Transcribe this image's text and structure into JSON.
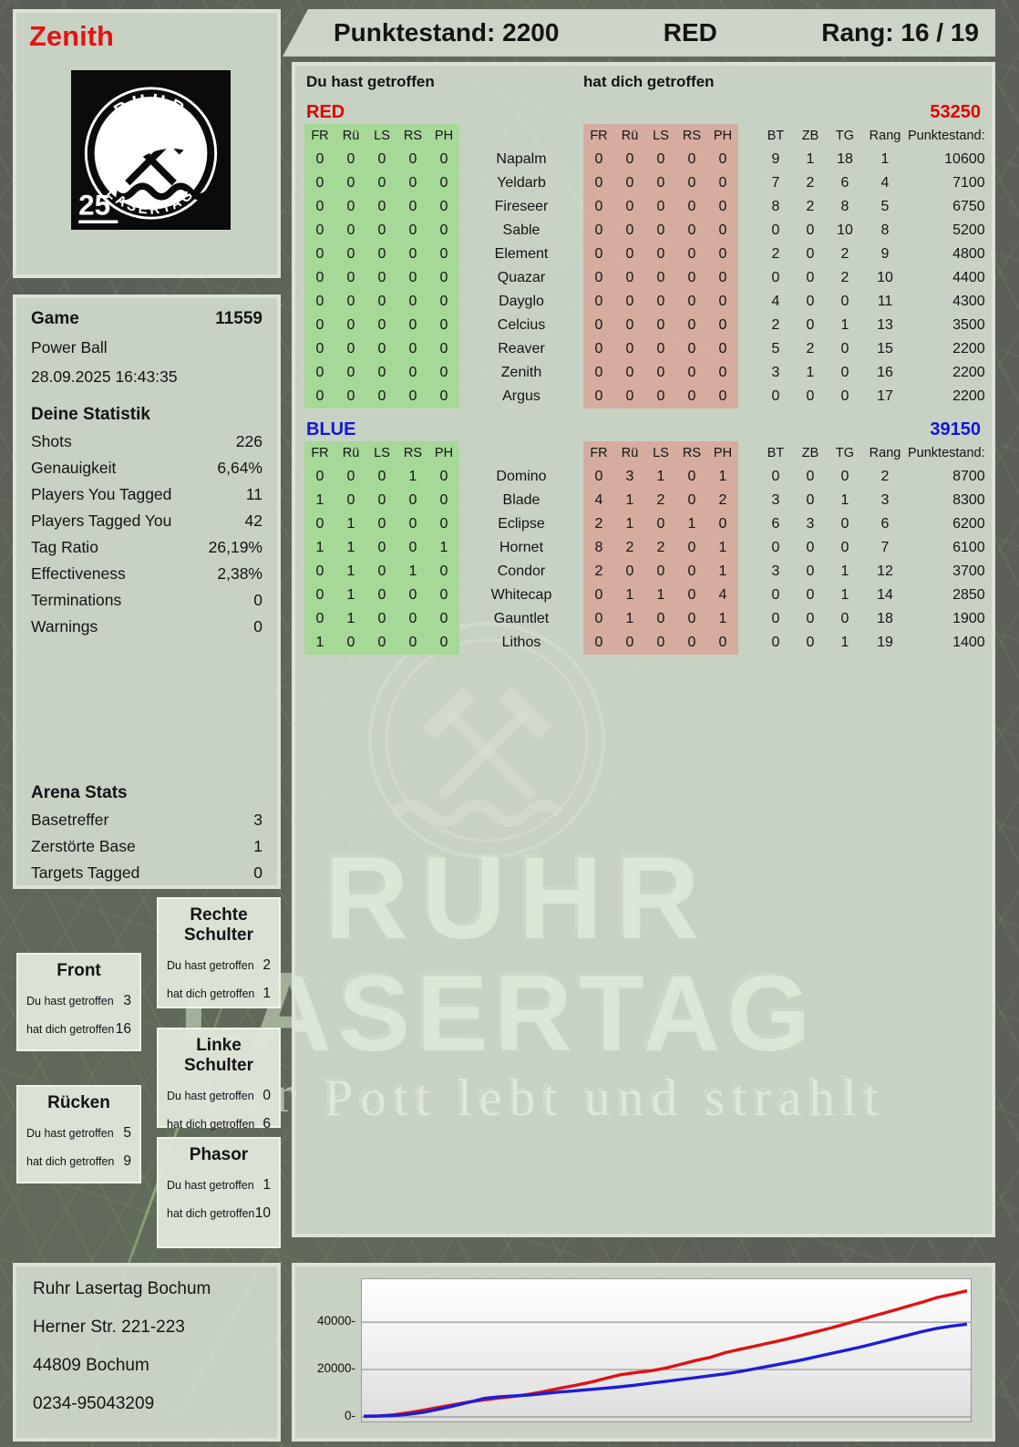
{
  "header": {
    "player_name": "Zenith",
    "score": "Punktestand: 2200",
    "team": "RED",
    "rank": "Rang: 16 / 19"
  },
  "logo": {
    "arc_top": "RUHR",
    "arc_bottom": "LASERTAG",
    "badge": "25"
  },
  "game": {
    "label": "Game",
    "number": "11559",
    "mode": "Power Ball",
    "datetime": "28.09.2025 16:43:35"
  },
  "your_stats": {
    "title": "Deine Statistik",
    "rows": [
      {
        "label": "Shots",
        "value": "226"
      },
      {
        "label": "Genauigkeit",
        "value": "6,64%"
      },
      {
        "label": "Players You Tagged",
        "value": "11"
      },
      {
        "label": "Players Tagged You",
        "value": "42"
      },
      {
        "label": "Tag Ratio",
        "value": "26,19%"
      },
      {
        "label": "Effectiveness",
        "value": "2,38%"
      },
      {
        "label": "Terminations",
        "value": "0"
      },
      {
        "label": "Warnings",
        "value": "0"
      }
    ]
  },
  "arena_stats": {
    "title": "Arena Stats",
    "rows": [
      {
        "label": "Basetreffer",
        "value": "3"
      },
      {
        "label": "Zerstörte Base",
        "value": "1"
      },
      {
        "label": "Targets Tagged",
        "value": "0"
      }
    ]
  },
  "hit_zones": {
    "you_label": "Du hast getroffen",
    "them_label": "hat dich getroffen",
    "boxes": [
      {
        "title": "Front",
        "you": "3",
        "them": "16"
      },
      {
        "title": "Rechte Schulter",
        "you": "2",
        "them": "1"
      },
      {
        "title": "Linke Schulter",
        "you": "0",
        "them": "6"
      },
      {
        "title": "Rücken",
        "you": "5",
        "them": "9"
      },
      {
        "title": "Phasor",
        "you": "1",
        "them": "10"
      }
    ]
  },
  "tables": {
    "you_label": "Du hast getroffen",
    "them_label": "hat dich getroffen",
    "col_headers": {
      "left": [
        "FR",
        "Rü",
        "LS",
        "RS",
        "PH"
      ],
      "right": [
        "FR",
        "Rü",
        "LS",
        "RS",
        "PH"
      ],
      "meta": [
        "BT",
        "ZB",
        "TG",
        "Rang",
        "Punktestand:"
      ]
    },
    "red": {
      "name": "RED",
      "total": "53250",
      "color": "#df0000",
      "rows": [
        {
          "you": [
            "0",
            "0",
            "0",
            "0",
            "0"
          ],
          "player": "Napalm",
          "them": [
            "0",
            "0",
            "0",
            "0",
            "0"
          ],
          "meta": [
            "9",
            "1",
            "18",
            "1",
            "10600"
          ]
        },
        {
          "you": [
            "0",
            "0",
            "0",
            "0",
            "0"
          ],
          "player": "Yeldarb",
          "them": [
            "0",
            "0",
            "0",
            "0",
            "0"
          ],
          "meta": [
            "7",
            "2",
            "6",
            "4",
            "7100"
          ]
        },
        {
          "you": [
            "0",
            "0",
            "0",
            "0",
            "0"
          ],
          "player": "Fireseer",
          "them": [
            "0",
            "0",
            "0",
            "0",
            "0"
          ],
          "meta": [
            "8",
            "2",
            "8",
            "5",
            "6750"
          ]
        },
        {
          "you": [
            "0",
            "0",
            "0",
            "0",
            "0"
          ],
          "player": "Sable",
          "them": [
            "0",
            "0",
            "0",
            "0",
            "0"
          ],
          "meta": [
            "0",
            "0",
            "10",
            "8",
            "5200"
          ]
        },
        {
          "you": [
            "0",
            "0",
            "0",
            "0",
            "0"
          ],
          "player": "Element",
          "them": [
            "0",
            "0",
            "0",
            "0",
            "0"
          ],
          "meta": [
            "2",
            "0",
            "2",
            "9",
            "4800"
          ]
        },
        {
          "you": [
            "0",
            "0",
            "0",
            "0",
            "0"
          ],
          "player": "Quazar",
          "them": [
            "0",
            "0",
            "0",
            "0",
            "0"
          ],
          "meta": [
            "0",
            "0",
            "2",
            "10",
            "4400"
          ]
        },
        {
          "you": [
            "0",
            "0",
            "0",
            "0",
            "0"
          ],
          "player": "Dayglo",
          "them": [
            "0",
            "0",
            "0",
            "0",
            "0"
          ],
          "meta": [
            "4",
            "0",
            "0",
            "11",
            "4300"
          ]
        },
        {
          "you": [
            "0",
            "0",
            "0",
            "0",
            "0"
          ],
          "player": "Celcius",
          "them": [
            "0",
            "0",
            "0",
            "0",
            "0"
          ],
          "meta": [
            "2",
            "0",
            "1",
            "13",
            "3500"
          ]
        },
        {
          "you": [
            "0",
            "0",
            "0",
            "0",
            "0"
          ],
          "player": "Reaver",
          "them": [
            "0",
            "0",
            "0",
            "0",
            "0"
          ],
          "meta": [
            "5",
            "2",
            "0",
            "15",
            "2200"
          ]
        },
        {
          "you": [
            "0",
            "0",
            "0",
            "0",
            "0"
          ],
          "player": "Zenith",
          "them": [
            "0",
            "0",
            "0",
            "0",
            "0"
          ],
          "meta": [
            "3",
            "1",
            "0",
            "16",
            "2200"
          ]
        },
        {
          "you": [
            "0",
            "0",
            "0",
            "0",
            "0"
          ],
          "player": "Argus",
          "them": [
            "0",
            "0",
            "0",
            "0",
            "0"
          ],
          "meta": [
            "0",
            "0",
            "0",
            "17",
            "2200"
          ]
        }
      ]
    },
    "blue": {
      "name": "BLUE",
      "total": "39150",
      "color": "#1515d6",
      "rows": [
        {
          "you": [
            "0",
            "0",
            "0",
            "1",
            "0"
          ],
          "player": "Domino",
          "them": [
            "0",
            "3",
            "1",
            "0",
            "1"
          ],
          "meta": [
            "0",
            "0",
            "0",
            "2",
            "8700"
          ]
        },
        {
          "you": [
            "1",
            "0",
            "0",
            "0",
            "0"
          ],
          "player": "Blade",
          "them": [
            "4",
            "1",
            "2",
            "0",
            "2"
          ],
          "meta": [
            "3",
            "0",
            "1",
            "3",
            "8300"
          ]
        },
        {
          "you": [
            "0",
            "1",
            "0",
            "0",
            "0"
          ],
          "player": "Eclipse",
          "them": [
            "2",
            "1",
            "0",
            "1",
            "0"
          ],
          "meta": [
            "6",
            "3",
            "0",
            "6",
            "6200"
          ]
        },
        {
          "you": [
            "1",
            "1",
            "0",
            "0",
            "1"
          ],
          "player": "Hornet",
          "them": [
            "8",
            "2",
            "2",
            "0",
            "1"
          ],
          "meta": [
            "0",
            "0",
            "0",
            "7",
            "6100"
          ]
        },
        {
          "you": [
            "0",
            "1",
            "0",
            "1",
            "0"
          ],
          "player": "Condor",
          "them": [
            "2",
            "0",
            "0",
            "0",
            "1"
          ],
          "meta": [
            "3",
            "0",
            "1",
            "12",
            "3700"
          ]
        },
        {
          "you": [
            "0",
            "1",
            "0",
            "0",
            "0"
          ],
          "player": "Whitecap",
          "them": [
            "0",
            "1",
            "1",
            "0",
            "4"
          ],
          "meta": [
            "0",
            "0",
            "1",
            "14",
            "2850"
          ]
        },
        {
          "you": [
            "0",
            "1",
            "0",
            "0",
            "0"
          ],
          "player": "Gauntlet",
          "them": [
            "0",
            "1",
            "0",
            "0",
            "1"
          ],
          "meta": [
            "0",
            "0",
            "0",
            "18",
            "1900"
          ]
        },
        {
          "you": [
            "1",
            "0",
            "0",
            "0",
            "0"
          ],
          "player": "Lithos",
          "them": [
            "0",
            "0",
            "0",
            "0",
            "0"
          ],
          "meta": [
            "0",
            "0",
            "1",
            "19",
            "1400"
          ]
        }
      ]
    }
  },
  "address": {
    "lines": [
      "Ruhr Lasertag Bochum",
      "Herner Str. 221-223",
      "44809 Bochum",
      "0234-95043209"
    ]
  },
  "watermark": {
    "line1": "RUHR",
    "line2": "LASERTAG",
    "tagline": "Der Pott lebt und strahlt"
  },
  "chart_data": {
    "type": "line",
    "title": "",
    "xlabel": "",
    "ylabel": "",
    "ylim": [
      0,
      57000
    ],
    "yticks": [
      0,
      20000,
      40000
    ],
    "ytick_labels": [
      "0-",
      "20000-",
      "40000-"
    ],
    "grid": true,
    "legend": false,
    "series": [
      {
        "name": "RED",
        "color": "#e01212",
        "values": [
          200,
          400,
          900,
          1800,
          2900,
          4100,
          5200,
          6300,
          7200,
          8000,
          8700,
          9600,
          10800,
          12100,
          13300,
          14600,
          16200,
          17800,
          18700,
          19400,
          20600,
          22200,
          23800,
          25200,
          27200,
          28600,
          30000,
          31400,
          32800,
          34400,
          36000,
          37600,
          39400,
          41200,
          43000,
          44800,
          46600,
          48400,
          50400,
          51800,
          53250
        ]
      },
      {
        "name": "BLUE",
        "color": "#1d1dd8",
        "values": [
          300,
          400,
          600,
          1100,
          2000,
          3300,
          4700,
          6200,
          7800,
          8500,
          8900,
          9300,
          9900,
          10500,
          11000,
          11600,
          12100,
          12700,
          13400,
          14200,
          15000,
          15800,
          16600,
          17400,
          18200,
          19200,
          20400,
          21600,
          22800,
          24000,
          25400,
          26800,
          28200,
          29600,
          31200,
          32800,
          34400,
          36000,
          37400,
          38400,
          39150
        ]
      }
    ]
  }
}
